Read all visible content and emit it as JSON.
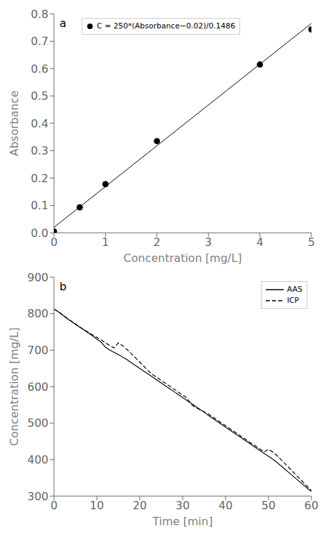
{
  "chart_data": [
    {
      "type": "scatter",
      "annotations": [
        "a"
      ],
      "xlabel": "Concentration [mg/L]",
      "ylabel": "Absorbance",
      "xlim": [
        0,
        5
      ],
      "ylim": [
        0,
        0.8
      ],
      "xticks": [
        0,
        1,
        2,
        3,
        4,
        5
      ],
      "yticks": [
        {
          "value": 0,
          "label": "0.0"
        },
        0.1,
        0.2,
        0.3,
        0.4,
        0.5,
        0.6,
        0.7,
        0.8
      ],
      "grid": false,
      "legend": "upper left",
      "series": [
        {
          "name": "C = 250*(Absorbance−0.02)/0.1486",
          "type": "scatter",
          "marker": "o",
          "color": "#000000",
          "x": [
            0.0,
            0.5,
            1.0,
            2.0,
            4.0,
            5.0
          ],
          "values": [
            0.005,
            0.093,
            0.178,
            0.335,
            0.615,
            0.743
          ]
        },
        {
          "type": "line",
          "line_style": "solid",
          "color": "#000000",
          "x": [
            0.0,
            5.0
          ],
          "values": [
            0.02,
            0.7652
          ]
        }
      ]
    },
    {
      "type": "line",
      "annotations": [
        "b"
      ],
      "xlabel": "Time [min]",
      "ylabel": "Concentration [mg/L]",
      "xlim": [
        0,
        60
      ],
      "ylim": [
        300,
        900
      ],
      "xticks": [
        0,
        10,
        20,
        30,
        40,
        50,
        60
      ],
      "yticks": [
        300,
        400,
        500,
        600,
        700,
        800,
        900
      ],
      "grid": false,
      "legend": "upper right",
      "x": [
        0,
        1,
        2,
        3,
        4,
        5,
        6,
        7,
        8,
        9,
        10,
        11,
        12,
        13,
        14,
        15,
        16,
        17,
        18,
        19,
        20,
        21,
        22,
        23,
        24,
        25,
        26,
        27,
        28,
        29,
        30,
        31,
        32,
        33,
        34,
        35,
        36,
        37,
        38,
        39,
        40,
        41,
        42,
        43,
        44,
        45,
        46,
        47,
        48,
        49,
        50,
        51,
        52,
        53,
        54,
        55,
        56,
        57,
        58,
        59,
        60
      ],
      "series": [
        {
          "name": "AAS",
          "color": "#000000",
          "line_style": "solid",
          "values": [
            812,
            805,
            796,
            787,
            779,
            771,
            763,
            755,
            747,
            739,
            730,
            722,
            708,
            700,
            694,
            688,
            681,
            674,
            666,
            658,
            650,
            642,
            634,
            626,
            618,
            610,
            602,
            594,
            586,
            578,
            570,
            562,
            554,
            546,
            538,
            530,
            521,
            513,
            505,
            497,
            489,
            481,
            473,
            465,
            457,
            449,
            441,
            433,
            425,
            417,
            409,
            401,
            392,
            382,
            372,
            362,
            352,
            342,
            332,
            322,
            313
          ]
        },
        {
          "name": "ICP",
          "color": "#000000",
          "line_style": "dashed",
          "values": [
            812,
            806,
            797,
            788,
            780,
            772,
            764,
            756,
            749,
            742,
            735,
            728,
            720,
            713,
            706,
            720,
            712,
            702,
            691,
            679,
            667,
            655,
            643,
            633,
            625,
            617,
            609,
            601,
            593,
            585,
            577,
            569,
            551,
            543,
            537,
            531,
            525,
            517,
            509,
            501,
            493,
            485,
            477,
            469,
            461,
            453,
            445,
            437,
            429,
            421,
            428,
            421,
            411,
            399,
            387,
            375,
            363,
            351,
            339,
            327,
            315
          ]
        }
      ]
    }
  ]
}
